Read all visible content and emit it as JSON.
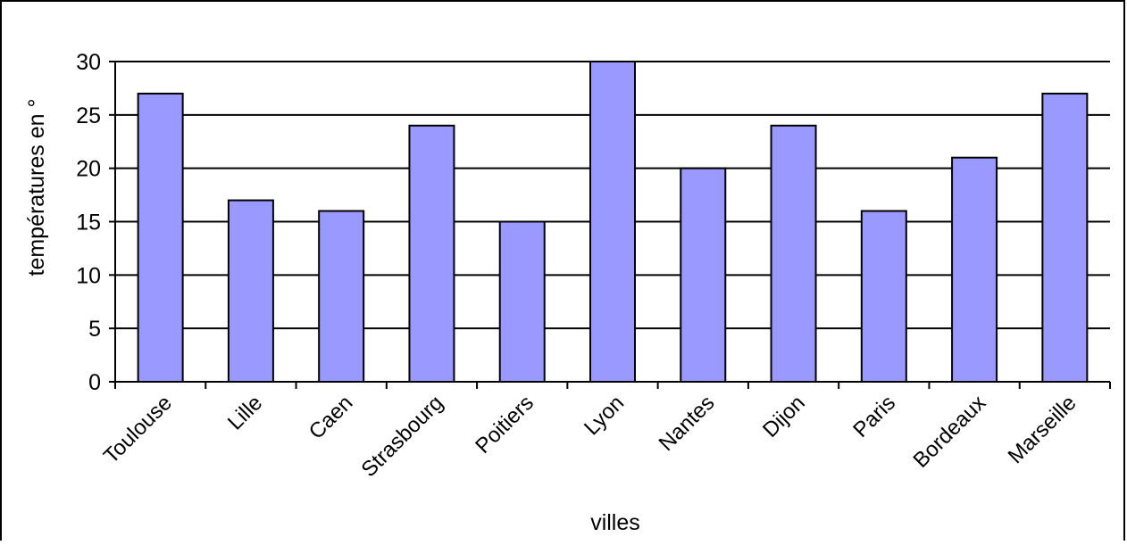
{
  "chart_data": {
    "type": "bar",
    "title": "",
    "xlabel": "villes",
    "ylabel": "températures en °",
    "categories": [
      "Toulouse",
      "Lille",
      "Caen",
      "Strasbourg",
      "Poitiers",
      "Lyon",
      "Nantes",
      "Dijon",
      "Paris",
      "Bordeaux",
      "Marseille"
    ],
    "values": [
      27,
      17,
      16,
      24,
      15,
      30,
      20,
      24,
      16,
      21,
      27
    ],
    "ylim": [
      0,
      30
    ],
    "yticks": [
      0,
      5,
      10,
      15,
      20,
      25,
      30
    ],
    "grid": true,
    "legend": "none",
    "colors": {
      "bar_fill": "#9999ff",
      "bar_stroke": "#000000",
      "gridline": "#000000",
      "background": "#ffffff"
    }
  }
}
